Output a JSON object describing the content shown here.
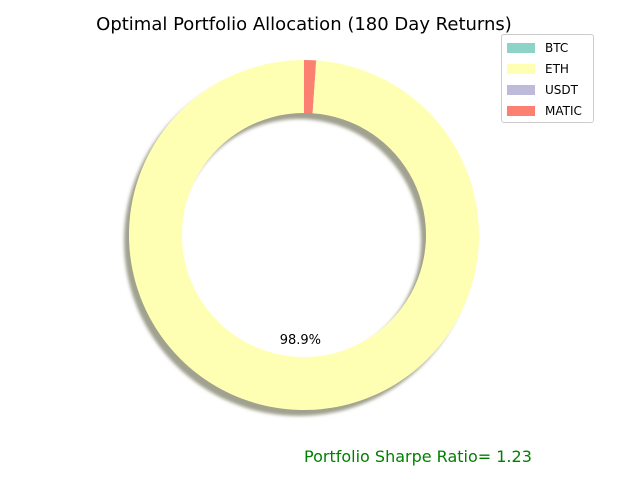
{
  "chart_data": {
    "type": "pie",
    "style": "donut",
    "title": "Optimal Portfolio Allocation (180 Day Returns)",
    "categories": [
      "BTC",
      "ETH",
      "USDT",
      "MATIC"
    ],
    "values": [
      0.0,
      98.9,
      0.0,
      1.1
    ],
    "colors": [
      "#8dd3c7",
      "#ffffb3",
      "#bebada",
      "#fb8072"
    ],
    "shown_labels": [
      "",
      "98.9%",
      "",
      ""
    ],
    "start_angle": 90,
    "counterclock": true,
    "shadow": true,
    "legend_position": "top-right",
    "annotation": "Portfolio Sharpe Ratio= 1.23",
    "annotation_color": "#008000"
  }
}
